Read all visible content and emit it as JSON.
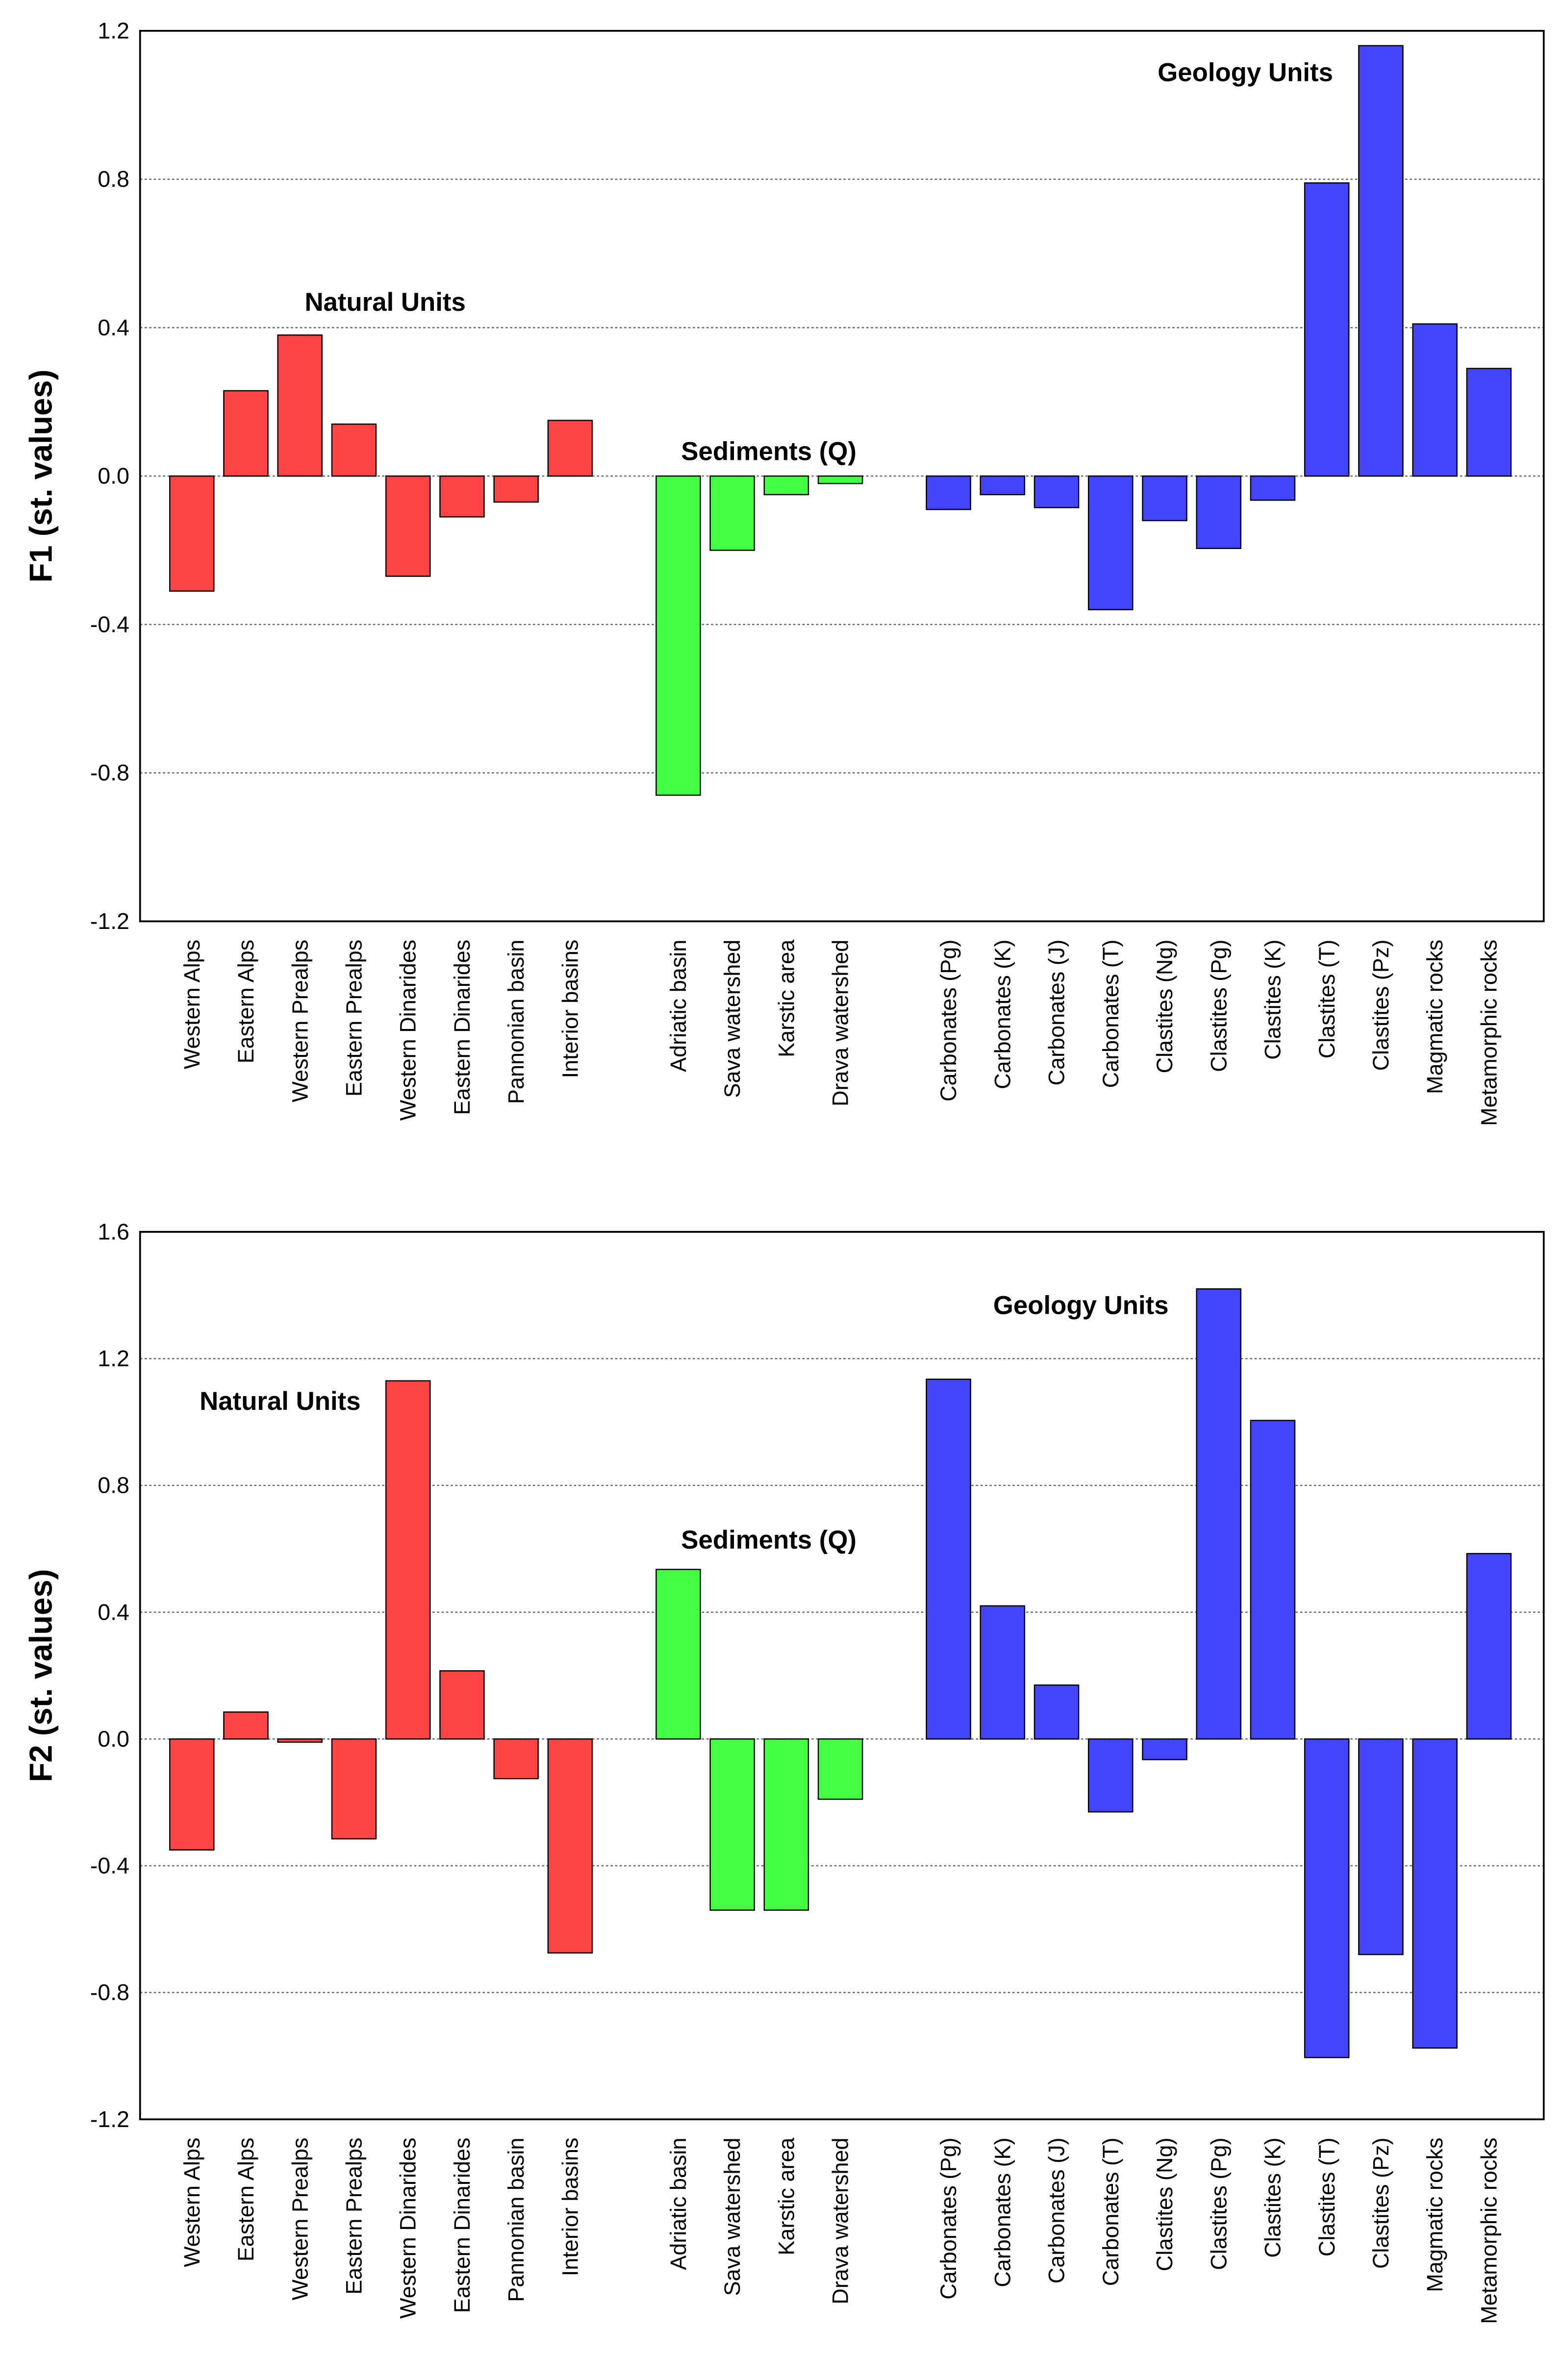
{
  "chart_data": [
    {
      "type": "bar",
      "ylabel": "F1 (st. values)",
      "ylim": [
        -1.2,
        1.2
      ],
      "yticks": [
        -1.2,
        -0.8,
        -0.4,
        0.0,
        0.4,
        0.8,
        1.2
      ],
      "ytick_labels": [
        "-1.2",
        "-0.8",
        "-0.4",
        "0.0",
        "0.4",
        "0.8",
        "1.2"
      ],
      "grid": "horizontal dotted",
      "groups": [
        {
          "name": "Natural Units",
          "color": "#ff4444",
          "categories": [
            "Western Alps",
            "Eastern Alps",
            "Western Prealps",
            "Eastern Prealps",
            "Western Dinarides",
            "Eastern Dinarides",
            "Pannonian basin",
            "Interior basins"
          ],
          "values": [
            -0.31,
            0.23,
            0.38,
            0.14,
            -0.27,
            -0.11,
            -0.07,
            0.15
          ]
        },
        {
          "name": "Sediments (Q)",
          "color": "#44ff44",
          "categories": [
            "Adriatic basin",
            "Sava watershed",
            "Karstic area",
            "Drava watershed"
          ],
          "values": [
            -0.86,
            -0.2,
            -0.05,
            -0.02
          ]
        },
        {
          "name": "Geology Units",
          "color": "#4444ff",
          "categories": [
            "Carbonates (Pg)",
            "Carbonates (K)",
            "Carbonates (J)",
            "Carbonates (T)",
            "Clastites (Ng)",
            "Clastites (Pg)",
            "Clastites (K)",
            "Clastites (T)",
            "Clastites (Pz)",
            "Magmatic rocks",
            "Metamorphic rocks"
          ],
          "values": [
            -0.09,
            -0.05,
            -0.085,
            -0.36,
            -0.12,
            -0.195,
            -0.065,
            0.79,
            1.16,
            0.41,
            0.29
          ]
        }
      ]
    },
    {
      "type": "bar",
      "ylabel": "F2 (st. values)",
      "ylim": [
        -1.2,
        1.6
      ],
      "yticks": [
        -1.2,
        -0.8,
        -0.4,
        0.0,
        0.4,
        0.8,
        1.2,
        1.6
      ],
      "ytick_labels": [
        "-1.2",
        "-0.8",
        "-0.4",
        "0.0",
        "0.4",
        "0.8",
        "1.2",
        "1.6"
      ],
      "grid": "horizontal dotted",
      "groups": [
        {
          "name": "Natural Units",
          "color": "#ff4444",
          "categories": [
            "Western Alps",
            "Eastern Alps",
            "Western Prealps",
            "Eastern Prealps",
            "Western Dinarides",
            "Eastern Dinarides",
            "Pannonian basin",
            "Interior basins"
          ],
          "values": [
            -0.35,
            0.085,
            -0.01,
            -0.315,
            1.13,
            0.215,
            -0.125,
            -0.675
          ]
        },
        {
          "name": "Sediments (Q)",
          "color": "#44ff44",
          "categories": [
            "Adriatic basin",
            "Sava watershed",
            "Karstic area",
            "Drava watershed"
          ],
          "values": [
            0.535,
            -0.54,
            -0.54,
            -0.19
          ]
        },
        {
          "name": "Geology Units",
          "color": "#4444ff",
          "categories": [
            "Carbonates (Pg)",
            "Carbonates (K)",
            "Carbonates (J)",
            "Carbonates (T)",
            "Clastites (Ng)",
            "Clastites (Pg)",
            "Clastites (K)",
            "Clastites (T)",
            "Clastites (Pz)",
            "Magmatic rocks",
            "Metamorphic rocks"
          ],
          "values": [
            1.135,
            0.42,
            0.17,
            -0.23,
            -0.065,
            1.42,
            1.005,
            -1.005,
            -0.68,
            -0.975,
            0.585
          ]
        }
      ]
    }
  ]
}
